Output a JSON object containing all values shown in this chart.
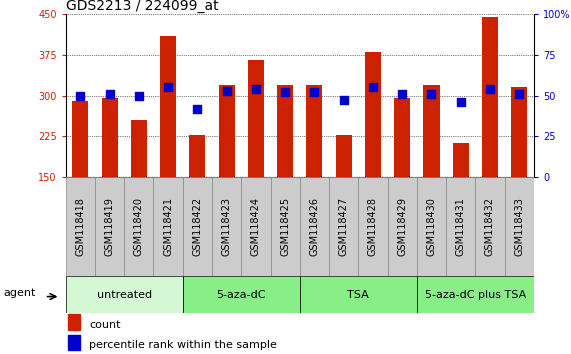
{
  "title": "GDS2213 / 224099_at",
  "categories": [
    "GSM118418",
    "GSM118419",
    "GSM118420",
    "GSM118421",
    "GSM118422",
    "GSM118423",
    "GSM118424",
    "GSM118425",
    "GSM118426",
    "GSM118427",
    "GSM118428",
    "GSM118429",
    "GSM118430",
    "GSM118431",
    "GSM118432",
    "GSM118433"
  ],
  "bar_values": [
    290,
    295,
    255,
    410,
    227,
    320,
    365,
    320,
    320,
    227,
    380,
    295,
    320,
    213,
    445,
    315
  ],
  "percentile_ranks": [
    50,
    51,
    50,
    55,
    42,
    53,
    54,
    52,
    52,
    47,
    55,
    51,
    51,
    46,
    54,
    51
  ],
  "bar_color": "#cc2200",
  "dot_color": "#0000cc",
  "bar_bottom": 150,
  "ylim_left": [
    150,
    450
  ],
  "ylim_right": [
    0,
    100
  ],
  "yticks_left": [
    150,
    225,
    300,
    375,
    450
  ],
  "yticks_right": [
    0,
    25,
    50,
    75,
    100
  ],
  "ytick_labels_right": [
    "0",
    "25",
    "50",
    "75",
    "100%"
  ],
  "groups": [
    {
      "label": "untreated",
      "start": 0,
      "end": 3,
      "color": "#d4f7d4"
    },
    {
      "label": "5-aza-dC",
      "start": 4,
      "end": 7,
      "color": "#88ee88"
    },
    {
      "label": "TSA",
      "start": 8,
      "end": 11,
      "color": "#88ee88"
    },
    {
      "label": "5-aza-dC plus TSA",
      "start": 12,
      "end": 15,
      "color": "#88ee88"
    }
  ],
  "legend_count_label": "count",
  "legend_pct_label": "percentile rank within the sample",
  "title_fontsize": 10,
  "label_fontsize": 7,
  "group_fontsize": 8,
  "legend_fontsize": 8,
  "bar_width": 0.55,
  "cell_bg": "#cccccc",
  "cell_border": "#888888"
}
